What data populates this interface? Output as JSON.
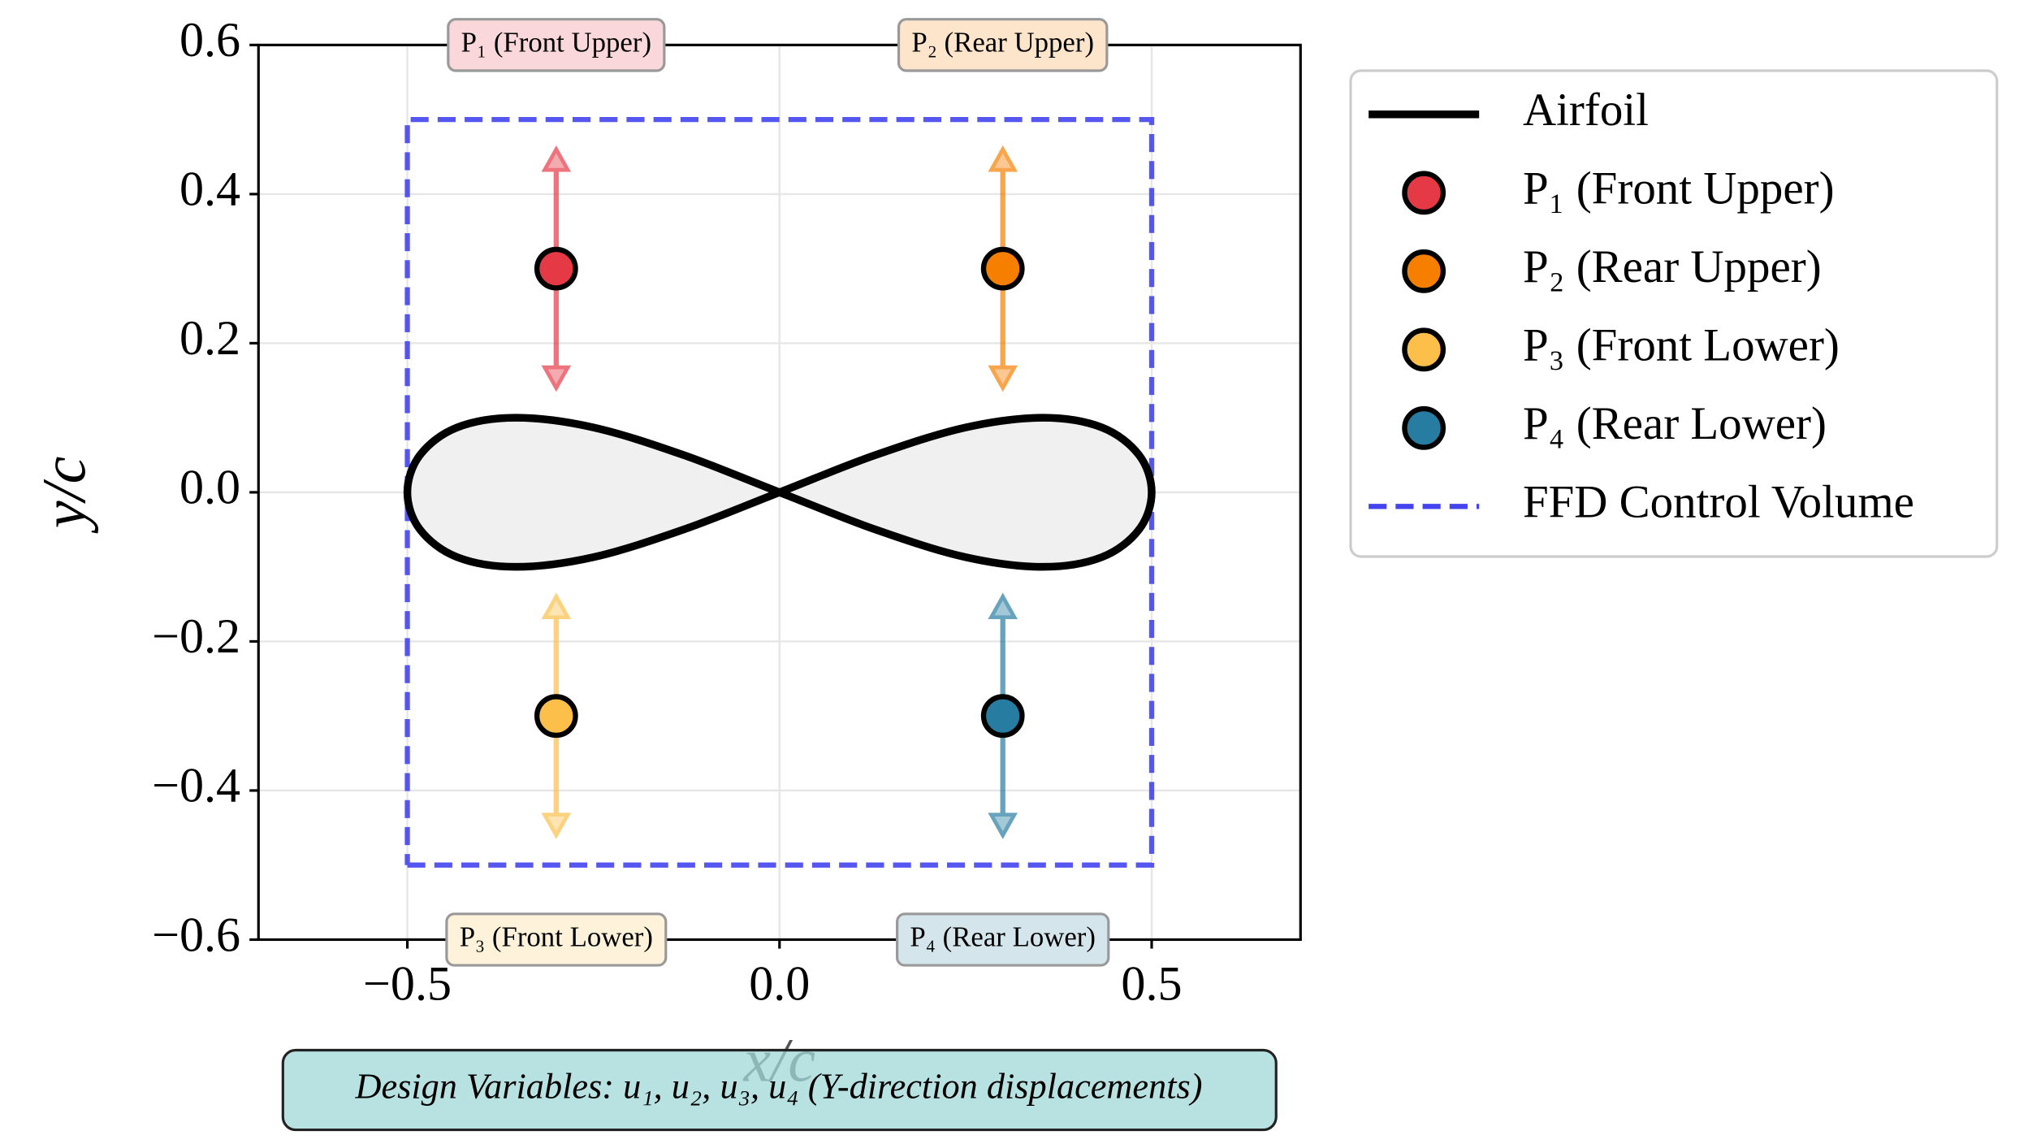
{
  "chart_data": {
    "type": "ffd",
    "xlabel": "x/c",
    "ylabel": "y/c",
    "xlim": [
      -0.7,
      0.7
    ],
    "ylim": [
      -0.6,
      0.6
    ],
    "xticks": [
      {
        "value": -0.5,
        "label": "−0.5"
      },
      {
        "value": 0,
        "label": "0.0"
      },
      0.5
    ],
    "yticks": [
      {
        "value": -0.6,
        "label": "−0.6"
      },
      {
        "value": -0.4,
        "label": "−0.4"
      },
      {
        "value": -0.2,
        "label": "−0.2"
      },
      {
        "value": 0,
        "label": "0.0"
      },
      0.2,
      0.4,
      0.6
    ],
    "grid": true,
    "legend": "outside right",
    "displacement": 0.16,
    "series": [
      {
        "name": "Airfoil",
        "color": "#000000",
        "fill": "#f0f0f0",
        "x": [
          0.5,
          0.483,
          0.433,
          0.354,
          0.25,
          0.129,
          0,
          -0.129,
          -0.25,
          -0.354,
          -0.433,
          -0.483,
          -0.5,
          -0.483,
          -0.433,
          -0.354,
          -0.25,
          -0.129,
          0,
          0.129,
          0.25,
          0.354,
          0.433,
          0.483,
          0.5
        ],
        "y": [
          0,
          0.05,
          0.087,
          0.1,
          0.087,
          0.05,
          0,
          -0.05,
          -0.087,
          -0.1,
          -0.087,
          -0.05,
          0,
          0.05,
          0.087,
          0.1,
          0.087,
          0.05,
          0,
          -0.05,
          -0.087,
          -0.1,
          -0.087,
          -0.05,
          0
        ]
      },
      {
        "name": "P₁ (Front Upper)",
        "color": "#e63946",
        "x": [
          -0.3
        ],
        "y": [
          0.3
        ]
      },
      {
        "name": "P₂ (Rear Upper)",
        "color": "#f77f00",
        "x": [
          0.3
        ],
        "y": [
          0.3
        ]
      },
      {
        "name": "P₃ (Front Lower)",
        "color": "#fcbf49",
        "x": [
          -0.3
        ],
        "y": [
          -0.3
        ]
      },
      {
        "name": "P₄ (Rear Lower)",
        "color": "#277da1",
        "x": [
          0.3
        ],
        "y": [
          -0.3
        ]
      },
      {
        "name": "FFD Control Volume",
        "color": "#4444ee",
        "dashed": true,
        "x": [
          -0.5,
          0.5,
          0.5,
          -0.5,
          -0.5
        ],
        "y": [
          -0.5,
          -0.5,
          0.5,
          0.5,
          -0.5
        ]
      }
    ],
    "note": "Design Variables: u₁, u₂, u₃, u₄ (Y-direction displacements)"
  }
}
